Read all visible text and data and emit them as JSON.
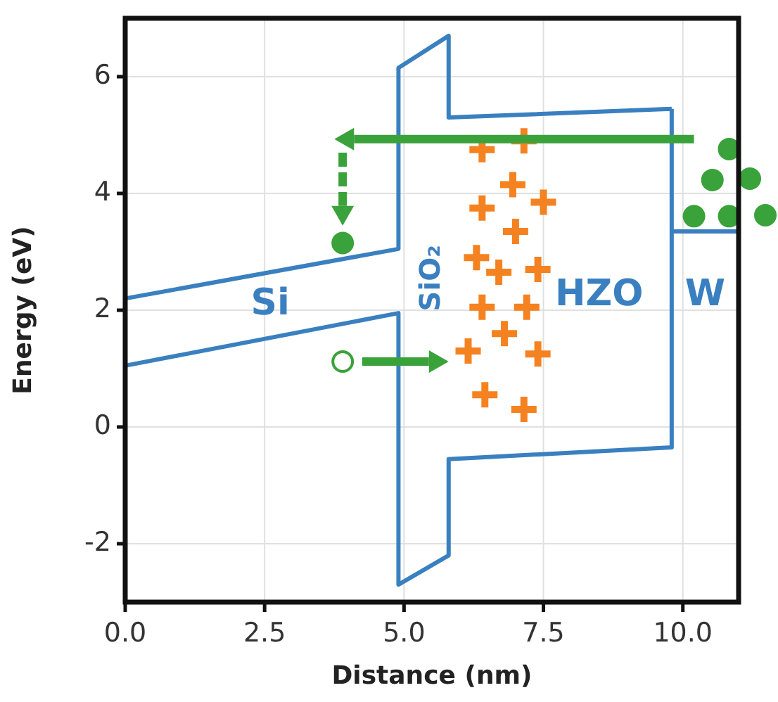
{
  "chart_data": {
    "type": "line",
    "xlabel": "Distance (nm)",
    "ylabel": "Energy (eV)",
    "xlim": [
      0,
      11
    ],
    "xticks": [
      {
        "value": 0,
        "label": "0.0"
      },
      2.5,
      {
        "value": 5,
        "label": "5.0"
      },
      7.5,
      {
        "value": 10,
        "label": "10.0"
      }
    ],
    "ylim": [
      -3,
      7
    ],
    "yticks": [
      -2,
      0,
      2,
      4,
      6
    ],
    "grid": true,
    "series": [
      {
        "color": "#3a80c0",
        "marker": "none",
        "line_style": "solid",
        "x": [
          0,
          4.9,
          4.9,
          5.8,
          5.8,
          9.8
        ],
        "values": [
          2.2,
          3.05,
          6.15,
          6.7,
          5.3,
          5.45
        ]
      },
      {
        "color": "#3a80c0",
        "marker": "none",
        "line_style": "solid",
        "x": [
          0,
          4.9,
          4.9,
          5.8,
          5.8,
          9.8,
          9.8
        ],
        "values": [
          1.05,
          1.95,
          -2.7,
          -2.2,
          -0.55,
          -0.35,
          5.45
        ]
      },
      {
        "color": "#3a80c0",
        "marker": "none",
        "line_style": "solid",
        "x": [
          9.8,
          11
        ],
        "values": [
          3.35,
          3.35
        ]
      },
      {
        "type": "scatter",
        "color": "#f58220",
        "marker": "cross",
        "x": [
          6.4,
          7.15,
          6.95,
          6.4,
          7.5,
          7.0,
          6.3,
          6.7,
          7.4,
          6.4,
          7.2,
          6.8,
          6.15,
          7.4,
          6.45,
          7.15
        ],
        "values": [
          4.75,
          4.9,
          4.15,
          3.75,
          3.85,
          3.35,
          2.9,
          2.65,
          2.7,
          2.05,
          2.05,
          1.6,
          1.3,
          1.25,
          0.55,
          0.3
        ]
      },
      {
        "type": "scatter",
        "color": "#3aa23a",
        "marker": "circle",
        "x": [
          3.9
        ],
        "values": [
          3.15
        ]
      },
      {
        "type": "scatter",
        "color": "#3aa23a",
        "marker": "circle",
        "x": [
          10.83,
          10.53,
          10.2,
          10.83
        ],
        "values": [
          4.76,
          4.23,
          3.61,
          3.61
        ]
      }
    ],
    "annotations": [
      "Si",
      "SiO₂",
      "HZO",
      "W"
    ]
  }
}
